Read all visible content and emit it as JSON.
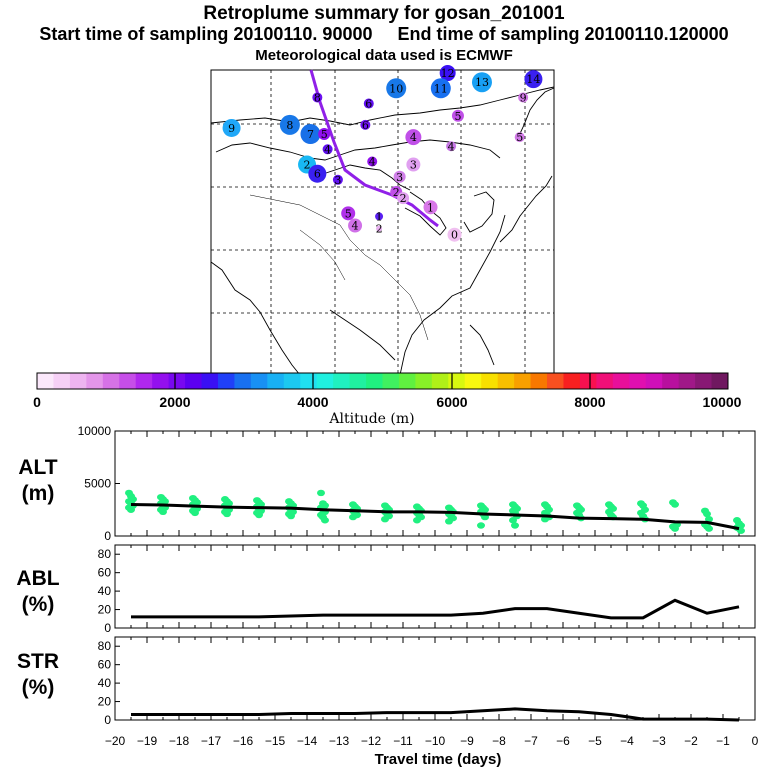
{
  "header": {
    "title": "Retroplume summary for gosan_201001",
    "sampling_line": "Start time of sampling 20100110. 90000     End time of sampling 20100110.120000",
    "met_line": "Meteorological data used is ECMWF"
  },
  "colors": {
    "ramp": [
      "#fbe8fb",
      "#f6d0f6",
      "#eeb4f0",
      "#e496ea",
      "#d672e6",
      "#c64ee8",
      "#b028ee",
      "#9410ee",
      "#7808f0",
      "#5c00f0",
      "#3a10f4",
      "#2040f8",
      "#1870f0",
      "#1890f4",
      "#18b0f4",
      "#1cc8f0",
      "#20e0f0",
      "#20f0e0",
      "#20f0c0",
      "#20f0a0",
      "#20f080",
      "#40f060",
      "#60f040",
      "#88f028",
      "#b0f018",
      "#d8f810",
      "#f8f810",
      "#f8e000",
      "#f8c000",
      "#f8a000",
      "#f87800",
      "#f85020",
      "#f82020",
      "#f81050",
      "#f01078",
      "#e8109a",
      "#e010b0",
      "#d010b8",
      "#b8109e",
      "#a01888",
      "#881874",
      "#701860"
    ],
    "markers": "#20f080",
    "line": "#000000"
  },
  "colorbar": {
    "ticks": [
      "0",
      "2000",
      "4000",
      "6000",
      "8000",
      "10000"
    ],
    "label": "Altitude (m)"
  },
  "map_points": [
    {
      "n": "9",
      "c": "#20a8f8",
      "r": 9,
      "lon": 0.06,
      "lat": 0.81
    },
    {
      "n": "8",
      "c": "#1878e8",
      "r": 10,
      "lon": 0.23,
      "lat": 0.82
    },
    {
      "n": "7",
      "c": "#1870e8",
      "r": 10,
      "lon": 0.29,
      "lat": 0.79
    },
    {
      "n": "5",
      "c": "#9010ee",
      "r": 6,
      "lon": 0.33,
      "lat": 0.79
    },
    {
      "n": "2",
      "c": "#18b8f4",
      "r": 9,
      "lon": 0.28,
      "lat": 0.69
    },
    {
      "n": "6",
      "c": "#3a20f0",
      "r": 9,
      "lon": 0.31,
      "lat": 0.66
    },
    {
      "n": "4",
      "c": "#6010f0",
      "r": 5,
      "lon": 0.34,
      "lat": 0.74
    },
    {
      "n": "8",
      "c": "#6a10f0",
      "r": 5,
      "lon": 0.31,
      "lat": 0.91
    },
    {
      "n": "3",
      "c": "#6010f0",
      "r": 5,
      "lon": 0.37,
      "lat": 0.64
    },
    {
      "n": "6",
      "c": "#6010f0",
      "r": 5,
      "lon": 0.46,
      "lat": 0.89
    },
    {
      "n": "6",
      "c": "#7010f0",
      "r": 5,
      "lon": 0.45,
      "lat": 0.82
    },
    {
      "n": "10",
      "c": "#1878e8",
      "r": 10,
      "lon": 0.54,
      "lat": 0.94
    },
    {
      "n": "12",
      "c": "#3a10f4",
      "r": 8,
      "lon": 0.69,
      "lat": 0.99
    },
    {
      "n": "11",
      "c": "#1870f0",
      "r": 10,
      "lon": 0.67,
      "lat": 0.94
    },
    {
      "n": "13",
      "c": "#18a0f4",
      "r": 10,
      "lon": 0.79,
      "lat": 0.96
    },
    {
      "n": "14",
      "c": "#3a20f0",
      "r": 9,
      "lon": 0.94,
      "lat": 0.97
    },
    {
      "n": "9",
      "c": "#d078e6",
      "r": 5,
      "lon": 0.91,
      "lat": 0.91
    },
    {
      "n": "5",
      "c": "#d078e6",
      "r": 5,
      "lon": 0.9,
      "lat": 0.78
    },
    {
      "n": "4",
      "c": "#c050e8",
      "r": 8,
      "lon": 0.59,
      "lat": 0.78
    },
    {
      "n": "5",
      "c": "#c050e8",
      "r": 6,
      "lon": 0.72,
      "lat": 0.85
    },
    {
      "n": "4",
      "c": "#c878e6",
      "r": 5,
      "lon": 0.7,
      "lat": 0.75
    },
    {
      "n": "4",
      "c": "#9010ee",
      "r": 5,
      "lon": 0.47,
      "lat": 0.7
    },
    {
      "n": "3",
      "c": "#e0a0f0",
      "r": 7,
      "lon": 0.59,
      "lat": 0.69
    },
    {
      "n": "3",
      "c": "#d080e8",
      "r": 6,
      "lon": 0.55,
      "lat": 0.65
    },
    {
      "n": "2",
      "c": "#c050e8",
      "r": 6,
      "lon": 0.54,
      "lat": 0.6
    },
    {
      "n": "2",
      "c": "#e0a0f0",
      "r": 6,
      "lon": 0.56,
      "lat": 0.58
    },
    {
      "n": "5",
      "c": "#b030ea",
      "r": 7,
      "lon": 0.4,
      "lat": 0.53
    },
    {
      "n": "4",
      "c": "#d070e8",
      "r": 7,
      "lon": 0.42,
      "lat": 0.49
    },
    {
      "n": "1",
      "c": "#5a20f0",
      "r": 4,
      "lon": 0.49,
      "lat": 0.52
    },
    {
      "n": "2",
      "c": "#e8b0f0",
      "r": 3,
      "lon": 0.49,
      "lat": 0.48
    },
    {
      "n": "1",
      "c": "#d878e8",
      "r": 7,
      "lon": 0.64,
      "lat": 0.55
    },
    {
      "n": "0",
      "c": "#f0c0f0",
      "r": 7,
      "lon": 0.71,
      "lat": 0.46
    }
  ],
  "chart_data": [
    {
      "type": "scatter",
      "name": "ALT (m)",
      "title": "ALT",
      "ylabel": "(m)",
      "ylim": [
        0,
        10000
      ],
      "yticks": [
        "0",
        "5000",
        "10000"
      ],
      "xlim": [
        -20,
        0
      ],
      "median_line": {
        "x": [
          -19.5,
          -18.5,
          -17.5,
          -16.5,
          -15.5,
          -14.5,
          -13.5,
          -12.5,
          -11.5,
          -10.5,
          -9.5,
          -8.5,
          -7.5,
          -6.5,
          -5.5,
          -4.5,
          -3.5,
          -2.5,
          -1.5,
          -0.5
        ],
        "y": [
          3000,
          2950,
          2850,
          2750,
          2700,
          2650,
          2500,
          2400,
          2300,
          2300,
          2250,
          2100,
          2000,
          1900,
          1700,
          1650,
          1600,
          1350,
          1300,
          700
        ]
      },
      "points": [
        {
          "x": -19.5,
          "y": [
            4100,
            3800,
            3500,
            3300,
            3100,
            2900,
            2700,
            2500
          ]
        },
        {
          "x": -18.5,
          "y": [
            3700,
            3500,
            3300,
            3100,
            2900,
            2700,
            2500,
            2300
          ]
        },
        {
          "x": -17.5,
          "y": [
            3600,
            3400,
            3200,
            3000,
            2800,
            2600,
            2400,
            2200
          ]
        },
        {
          "x": -16.5,
          "y": [
            3500,
            3300,
            3100,
            2900,
            2700,
            2500,
            2300,
            2100
          ]
        },
        {
          "x": -15.5,
          "y": [
            3400,
            3200,
            3000,
            2800,
            2600,
            2400,
            2200,
            2000
          ]
        },
        {
          "x": -14.5,
          "y": [
            3300,
            3100,
            2900,
            2700,
            2500,
            2300,
            2100,
            1900
          ]
        },
        {
          "x": -13.5,
          "y": [
            4100,
            3100,
            2900,
            2700,
            2500,
            2300,
            2000,
            1800,
            1500
          ]
        },
        {
          "x": -12.5,
          "y": [
            3000,
            2800,
            2600,
            2400,
            2200,
            2000,
            1800
          ]
        },
        {
          "x": -11.5,
          "y": [
            2900,
            2700,
            2500,
            2300,
            2100,
            1900,
            1600
          ]
        },
        {
          "x": -10.5,
          "y": [
            2800,
            2600,
            2400,
            2200,
            2000,
            1800,
            1500
          ]
        },
        {
          "x": -9.5,
          "y": [
            2700,
            2500,
            2300,
            2100,
            1900,
            1700,
            1400
          ]
        },
        {
          "x": -8.5,
          "y": [
            2900,
            2700,
            2500,
            2300,
            2100,
            1800,
            1000
          ]
        },
        {
          "x": -7.5,
          "y": [
            3000,
            2800,
            2600,
            2400,
            2200,
            1900,
            1500,
            1000
          ]
        },
        {
          "x": -6.5,
          "y": [
            3000,
            2800,
            2500,
            2200,
            2000,
            1800,
            1600
          ]
        },
        {
          "x": -5.5,
          "y": [
            2900,
            2700,
            2500,
            2200,
            2000,
            1700
          ]
        },
        {
          "x": -4.5,
          "y": [
            3000,
            2800,
            2600,
            2300,
            2000,
            1800
          ]
        },
        {
          "x": -3.5,
          "y": [
            3100,
            2900,
            2500,
            2200,
            1900,
            1600
          ]
        },
        {
          "x": -2.5,
          "y": [
            3200,
            3000,
            1100,
            900,
            700
          ]
        },
        {
          "x": -1.5,
          "y": [
            2400,
            2100,
            1600,
            1100,
            900,
            700
          ]
        },
        {
          "x": -0.5,
          "y": [
            1500,
            1200,
            1000,
            800,
            700,
            500
          ]
        }
      ]
    },
    {
      "type": "line",
      "name": "ABL (%)",
      "title": "ABL",
      "ylabel": "(%)",
      "ylim": [
        0,
        90
      ],
      "yticks": [
        "0",
        "20",
        "40",
        "60",
        "80"
      ],
      "xlim": [
        -20,
        0
      ],
      "x": [
        -19.5,
        -18.5,
        -17.5,
        -16.5,
        -15.5,
        -14.5,
        -13.5,
        -12.5,
        -11.5,
        -10.5,
        -9.5,
        -8.5,
        -7.5,
        -6.5,
        -5.5,
        -4.5,
        -3.5,
        -2.5,
        -1.5,
        -0.5
      ],
      "y": [
        12,
        12,
        12,
        12,
        12,
        13,
        14,
        14,
        14,
        14,
        14,
        16,
        21,
        21,
        16,
        11,
        11,
        30,
        16,
        23
      ]
    },
    {
      "type": "line",
      "name": "STR (%)",
      "title": "STR",
      "ylabel": "(%)",
      "ylim": [
        0,
        90
      ],
      "yticks": [
        "0",
        "20",
        "40",
        "60",
        "80"
      ],
      "xlim": [
        -20,
        0
      ],
      "x": [
        -19.5,
        -18.5,
        -17.5,
        -16.5,
        -15.5,
        -14.5,
        -13.5,
        -12.5,
        -11.5,
        -10.5,
        -9.5,
        -8.5,
        -7.5,
        -6.5,
        -5.5,
        -4.5,
        -3.5,
        -2.5,
        -1.5,
        -0.5
      ],
      "y": [
        6,
        6,
        6,
        6,
        6,
        7,
        7,
        7,
        8,
        8,
        8,
        10,
        12,
        10,
        9,
        6,
        1,
        1,
        1,
        0
      ]
    }
  ],
  "x_axis": {
    "tick_labels": [
      "−20",
      "−19",
      "−18",
      "−17",
      "−16",
      "−15",
      "−14",
      "−13",
      "−12",
      "−11",
      "−10",
      "−9",
      "−8",
      "−7",
      "−6",
      "−5",
      "−4",
      "−3",
      "−2",
      "−1",
      "0"
    ],
    "label": "Travel time (days)"
  }
}
